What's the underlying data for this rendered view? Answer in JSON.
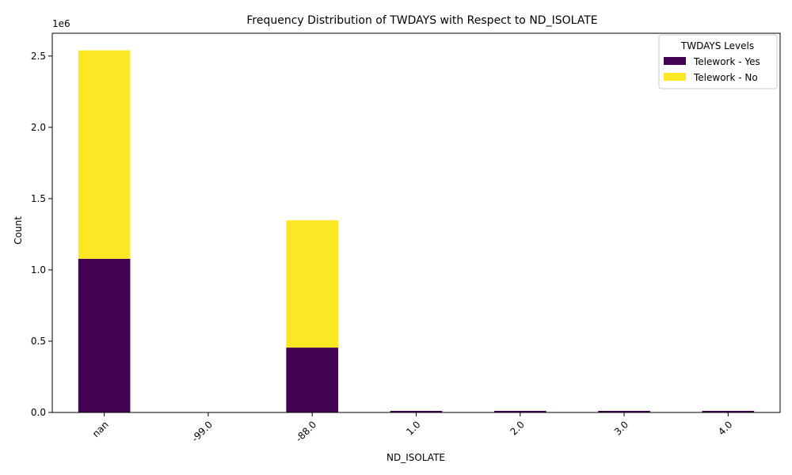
{
  "chart_data": {
    "type": "bar",
    "stacked": true,
    "title": "Frequency Distribution of TWDAYS with Respect to ND_ISOLATE",
    "xlabel": "ND_ISOLATE",
    "ylabel": "Count",
    "offset_label": "1e6",
    "categories": [
      "nan",
      "-99.0",
      "-88.0",
      "1.0",
      "2.0",
      "3.0",
      "4.0"
    ],
    "yticks": [
      "0.0",
      "0.5",
      "1.0",
      "1.5",
      "2.0",
      "2.5"
    ],
    "ylim": [
      0,
      2.66
    ],
    "y_unit": "millions",
    "grid": false,
    "legend": {
      "title": "TWDAYS Levels",
      "placement": "upper-right"
    },
    "series": [
      {
        "name": "Telework - Yes",
        "color": "#440154",
        "values": [
          1.078,
          0.0,
          0.455,
          0.005,
          0.005,
          0.005,
          0.005
        ]
      },
      {
        "name": "Telework - No",
        "color": "#fde725",
        "values": [
          1.462,
          0.0,
          0.893,
          0.0,
          0.0,
          0.0,
          0.0
        ]
      }
    ]
  }
}
